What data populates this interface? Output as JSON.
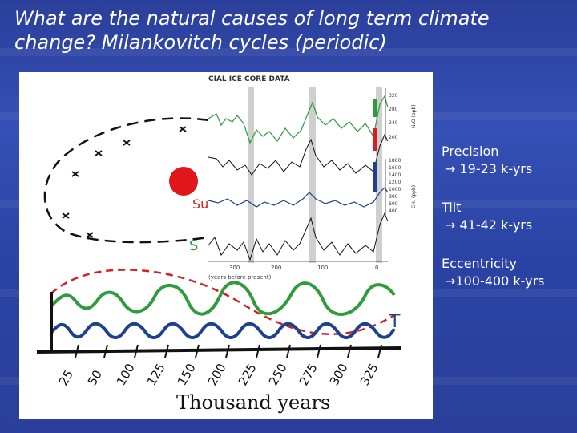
{
  "title": "What are the natural causes of long term climate change? Milankovitch cycles (periodic)",
  "figure": {
    "ice_core_header": "CIAL ICE CORE DATA",
    "axis_n2o_label": "N₂O (ppb)",
    "axis_ch4_label": "CH₄ (ppb)",
    "n2o_ticks": [
      "320",
      "280",
      "240",
      "200"
    ],
    "ch4_ticks": [
      "1800",
      "1600",
      "1400",
      "1200",
      "1000",
      "800",
      "600",
      "400"
    ],
    "x_ticks": [
      "300",
      "200",
      "100",
      "0"
    ],
    "x_axis_label": "(years before present)",
    "sun_label": "Su",
    "orbit_marker_label": "S",
    "t_label": "T",
    "handwritten_ticks": [
      "25",
      "50",
      "100",
      "125",
      "150",
      "200",
      "225",
      "250",
      "275",
      "300",
      "325"
    ],
    "handwritten_xlabel": "Thousand years"
  },
  "cycles": [
    {
      "name": "Precision",
      "value": "→ 19-23 k-yrs"
    },
    {
      "name": "Tilt",
      "value": "→ 41-42 k-yrs"
    },
    {
      "name": "Eccentricity",
      "value": "→100-400 k-yrs"
    }
  ],
  "colors": {
    "green": "#2e9b3d",
    "blue": "#1f3f8f",
    "red": "#d61e1e"
  }
}
